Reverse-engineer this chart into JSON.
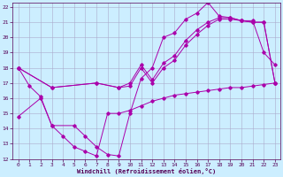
{
  "title": "Windchill (Refroidissement éolien,°C)",
  "bg_color": "#cceeff",
  "grid_color": "#aaaacc",
  "line_color": "#aa00aa",
  "xlim": [
    -0.5,
    23.5
  ],
  "ylim": [
    12,
    22.3
  ],
  "yticks": [
    12,
    13,
    14,
    15,
    16,
    17,
    18,
    19,
    20,
    21,
    22
  ],
  "xticks": [
    0,
    1,
    2,
    3,
    4,
    5,
    6,
    7,
    8,
    9,
    10,
    11,
    12,
    13,
    14,
    15,
    16,
    17,
    18,
    19,
    20,
    21,
    22,
    23
  ],
  "line1_x": [
    0,
    1,
    2,
    3,
    5,
    6,
    7,
    8,
    9,
    10,
    11,
    12,
    13,
    14,
    15,
    16,
    17,
    18,
    19,
    20,
    21,
    22,
    23
  ],
  "line1_y": [
    18.0,
    16.8,
    16.1,
    14.2,
    14.2,
    13.5,
    12.8,
    12.3,
    12.2,
    15.0,
    17.3,
    18.0,
    20.0,
    20.3,
    21.2,
    21.6,
    22.3,
    21.4,
    21.3,
    21.1,
    21.1,
    19.0,
    18.2
  ],
  "line2_x": [
    0,
    3,
    7,
    9,
    10,
    11,
    12,
    13,
    14,
    15,
    16,
    17,
    18,
    19,
    20,
    21,
    22,
    23
  ],
  "line2_y": [
    18.0,
    16.7,
    17.0,
    16.7,
    16.8,
    18.0,
    17.0,
    18.0,
    18.5,
    19.5,
    20.2,
    20.8,
    21.2,
    21.2,
    21.1,
    21.0,
    21.0,
    17.0
  ],
  "line3_x": [
    0,
    3,
    7,
    9,
    10,
    11,
    12,
    13,
    14,
    15,
    16,
    17,
    18,
    19,
    20,
    21,
    22,
    23
  ],
  "line3_y": [
    18.0,
    16.7,
    17.0,
    16.7,
    17.0,
    18.2,
    17.2,
    18.3,
    18.8,
    19.8,
    20.5,
    21.0,
    21.3,
    21.3,
    21.1,
    21.0,
    21.0,
    17.0
  ],
  "line4_x": [
    0,
    2,
    3,
    4,
    5,
    6,
    7,
    8,
    9,
    10,
    11,
    12,
    13,
    14,
    15,
    16,
    17,
    18,
    19,
    20,
    21,
    22,
    23
  ],
  "line4_y": [
    14.8,
    16.0,
    14.2,
    13.5,
    12.8,
    12.5,
    12.2,
    15.0,
    15.0,
    15.2,
    15.5,
    15.8,
    16.0,
    16.2,
    16.3,
    16.4,
    16.5,
    16.6,
    16.7,
    16.7,
    16.8,
    16.9,
    17.0
  ]
}
